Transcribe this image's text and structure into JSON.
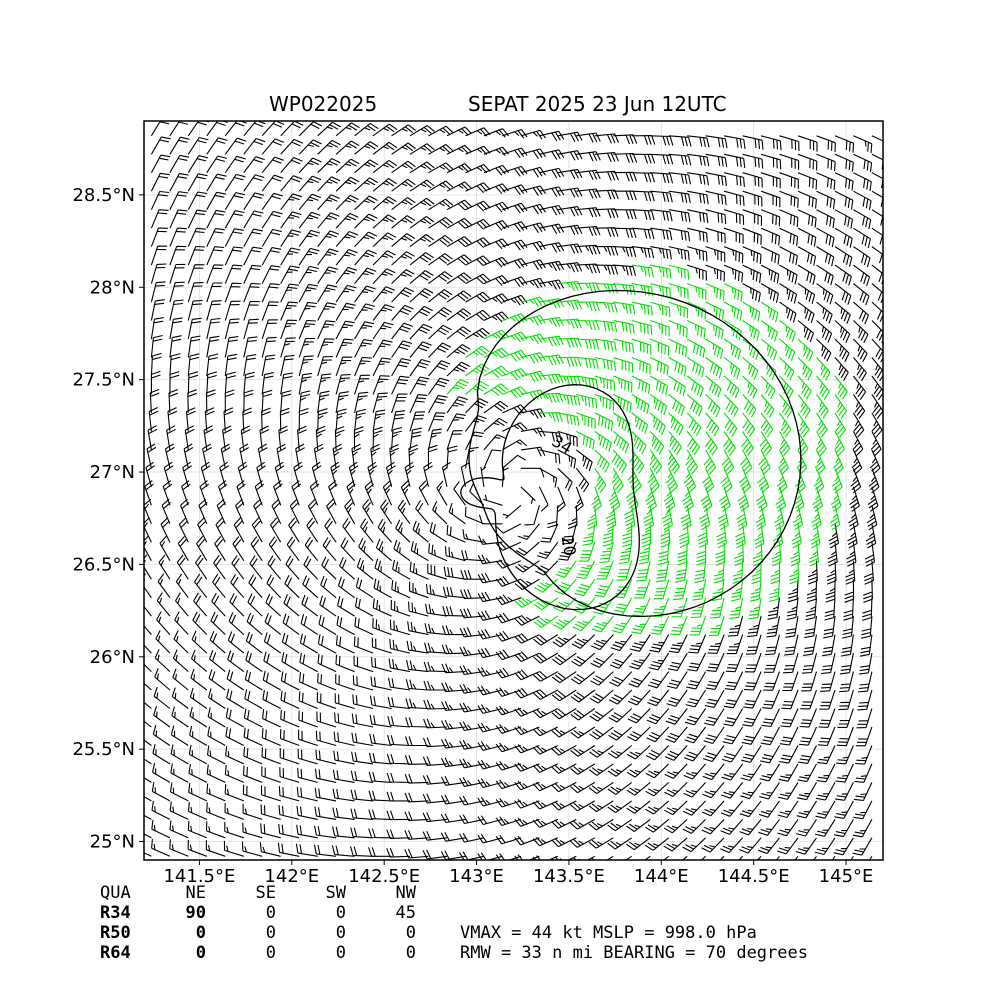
{
  "title_left": "WP022025",
  "title_right": "SEPAT 2025 23 Jun 12UTC",
  "colors": {
    "below_34kt": "#000000",
    "34_to_50kt": "#00e000",
    "50_to_64kt": "#e8c020",
    "contour": "#000000"
  },
  "chart_data": {
    "type": "wind-barb map",
    "x_ticks": [
      "141.5°E",
      "142°E",
      "142.5°E",
      "143°E",
      "143.5°E",
      "144°E",
      "144.5°E",
      "145°E"
    ],
    "y_ticks": [
      "28.5°N",
      "28°N",
      "27.5°N",
      "27°N",
      "26.5°N",
      "26°N",
      "25.5°N",
      "25°N"
    ],
    "lon_range": [
      141.2,
      145.2
    ],
    "lat_range": [
      24.9,
      28.9
    ],
    "grid": true,
    "storm_center": [
      143.2,
      26.9
    ],
    "contour_labels": [
      "34",
      "20"
    ],
    "vmax_kt": 44,
    "mslp_hpa": 998.0,
    "rmw_nmi": 33,
    "bearing_deg": 70,
    "wind_radii_nmi": {
      "R34": {
        "NE": 90,
        "SE": 0,
        "SW": 0,
        "NW": 45
      },
      "R50": {
        "NE": 0,
        "SE": 0,
        "SW": 0,
        "NW": 0
      },
      "R64": {
        "NE": 0,
        "SE": 0,
        "SW": 0,
        "NW": 0
      }
    }
  },
  "table": {
    "header": [
      "QUA",
      "NE",
      "SE",
      "SW",
      "NW"
    ],
    "rows": [
      {
        "label": "R34",
        "values": [
          "90",
          "0",
          "0",
          "45"
        ]
      },
      {
        "label": "R50",
        "values": [
          "0",
          "0",
          "0",
          "0"
        ]
      },
      {
        "label": "R64",
        "values": [
          "0",
          "0",
          "0",
          "0"
        ]
      }
    ]
  },
  "stats": {
    "line1": "VMAX =  44 kt MSLP = 998.0 hPa",
    "line2": "RMW =  33 n mi BEARING =  70 degrees"
  }
}
